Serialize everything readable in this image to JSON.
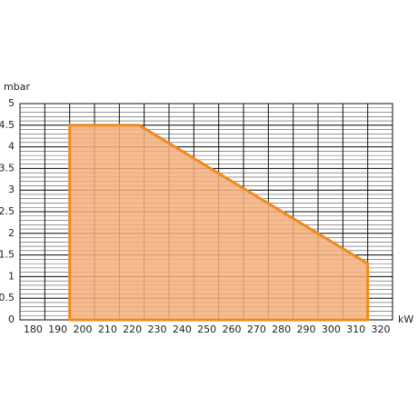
{
  "chart_data": {
    "type": "area",
    "y_label": "mbar",
    "x_label": "kW",
    "x": [
      190,
      190,
      218,
      310,
      310
    ],
    "values": [
      0,
      4.5,
      4.5,
      1.3,
      0
    ],
    "color": "#f08a1e",
    "fill": "#f4b07c",
    "xlim": [
      170,
      320
    ],
    "xticks": [
      180,
      190,
      200,
      210,
      220,
      230,
      240,
      250,
      260,
      270,
      280,
      290,
      300,
      310,
      320
    ],
    "ylim": [
      0,
      5
    ],
    "yticks": [
      0,
      0.5,
      1,
      1.5,
      2,
      2.5,
      3,
      3.5,
      4,
      4.5,
      5
    ],
    "grid": true,
    "minor_grid_step": 0.1
  }
}
